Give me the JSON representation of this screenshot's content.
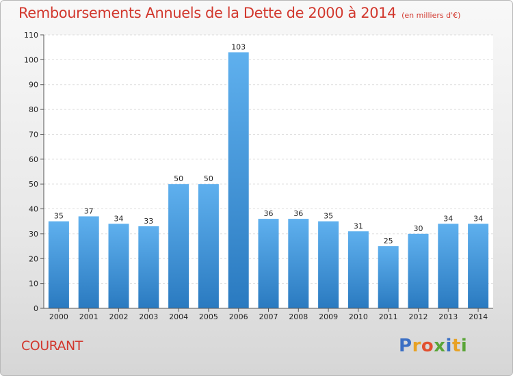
{
  "title": "Remboursements Annuels de la Dette de 2000 à 2014",
  "unit_note": "(en milliers d'€)",
  "series_label": "COURANT",
  "logo": {
    "text": "Proxiti",
    "letter_colors": [
      "#3b6fc4",
      "#e8a224",
      "#e2502f",
      "#5aa538",
      "#3b6fc4",
      "#e8a224",
      "#5aa538"
    ]
  },
  "colors": {
    "title": "#d2382e",
    "bar_top": "#5fb0ee",
    "bar_bottom": "#2a7ac0",
    "grid": "#dddddd",
    "axis": "#555555"
  },
  "chart_data": {
    "type": "bar",
    "categories": [
      "2000",
      "2001",
      "2002",
      "2003",
      "2004",
      "2005",
      "2006",
      "2007",
      "2008",
      "2009",
      "2010",
      "2011",
      "2012",
      "2013",
      "2014"
    ],
    "values": [
      35,
      37,
      34,
      33,
      50,
      50,
      103,
      36,
      36,
      35,
      31,
      25,
      30,
      34,
      34
    ],
    "y_ticks": [
      0,
      10,
      20,
      30,
      40,
      50,
      60,
      70,
      80,
      90,
      100,
      110
    ],
    "ylim": [
      0,
      110
    ],
    "grid": true,
    "data_labels": true
  }
}
